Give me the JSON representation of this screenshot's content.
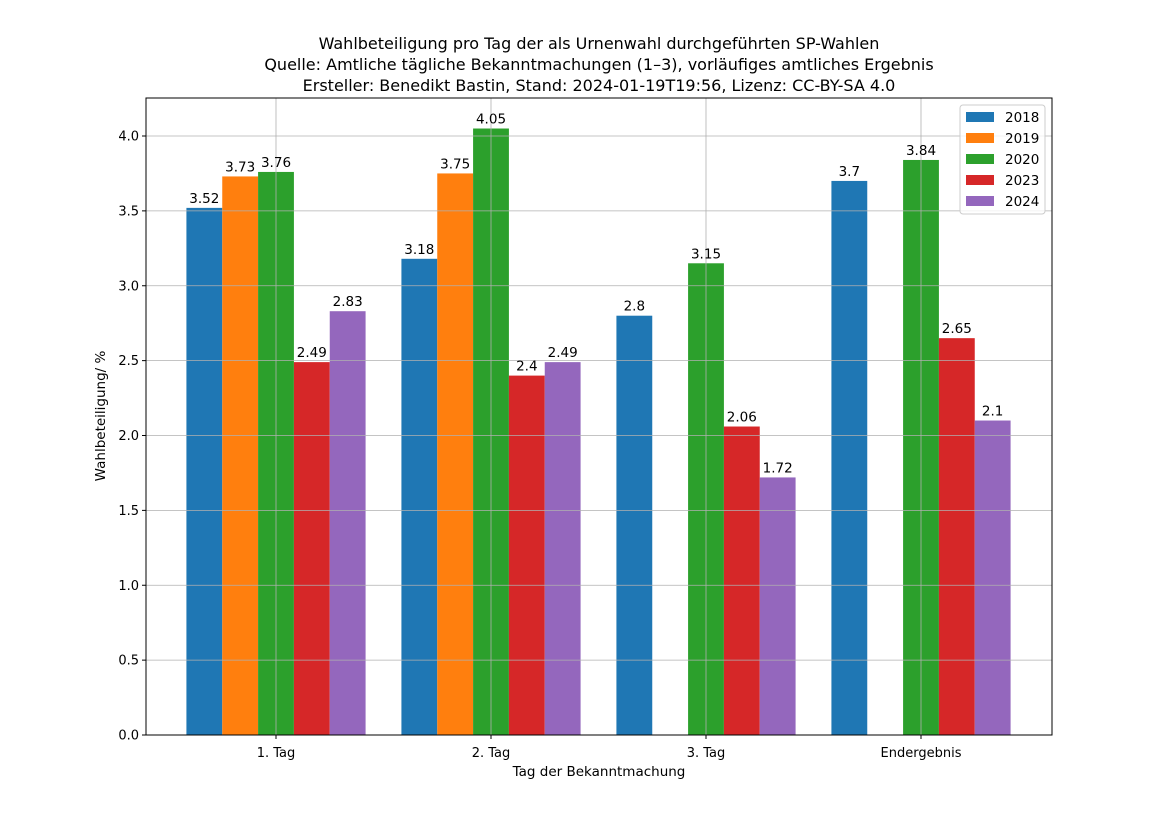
{
  "chart_data": {
    "type": "bar",
    "title_lines": [
      "Wahlbeteiligung pro Tag der als Urnenwahl durchgeführten SP-Wahlen",
      "Quelle: Amtliche tägliche Bekanntmachungen (1–3), vorläufiges amtliches Ergebnis",
      "Ersteller: Benedikt Bastin, Stand: 2024-01-19T19:56, Lizenz: CC-BY-SA 4.0"
    ],
    "xlabel": "Tag der Bekanntmachung",
    "ylabel": "Wahlbeteiligung/ %",
    "categories": [
      "1. Tag",
      "2. Tag",
      "3. Tag",
      "Endergebnis"
    ],
    "ylim": [
      0,
      4.25
    ],
    "yticks": [
      0.0,
      0.5,
      1.0,
      1.5,
      2.0,
      2.5,
      3.0,
      3.5,
      4.0
    ],
    "ytick_labels": [
      "0.0",
      "0.5",
      "1.0",
      "1.5",
      "2.0",
      "2.5",
      "3.0",
      "3.5",
      "4.0"
    ],
    "grid": true,
    "legend_position": "top-right",
    "series": [
      {
        "name": "2018",
        "color": "#1f77b4",
        "values": [
          3.52,
          3.18,
          2.8,
          3.7
        ],
        "labels": [
          "3.52",
          "3.18",
          "2.8",
          "3.7"
        ]
      },
      {
        "name": "2019",
        "color": "#ff7f0e",
        "values": [
          3.73,
          3.75,
          null,
          null
        ],
        "labels": [
          "3.73",
          "3.75",
          null,
          null
        ]
      },
      {
        "name": "2020",
        "color": "#2ca02c",
        "values": [
          3.76,
          4.05,
          3.15,
          3.84
        ],
        "labels": [
          "3.76",
          "4.05",
          "3.15",
          "3.84"
        ]
      },
      {
        "name": "2023",
        "color": "#d62728",
        "values": [
          2.49,
          2.4,
          2.06,
          2.65
        ],
        "labels": [
          "2.49",
          "2.4",
          "2.06",
          "2.65"
        ]
      },
      {
        "name": "2024",
        "color": "#9467bd",
        "values": [
          2.83,
          2.49,
          1.72,
          2.1
        ],
        "labels": [
          "2.83",
          "2.49",
          "1.72",
          "2.1"
        ]
      }
    ]
  }
}
